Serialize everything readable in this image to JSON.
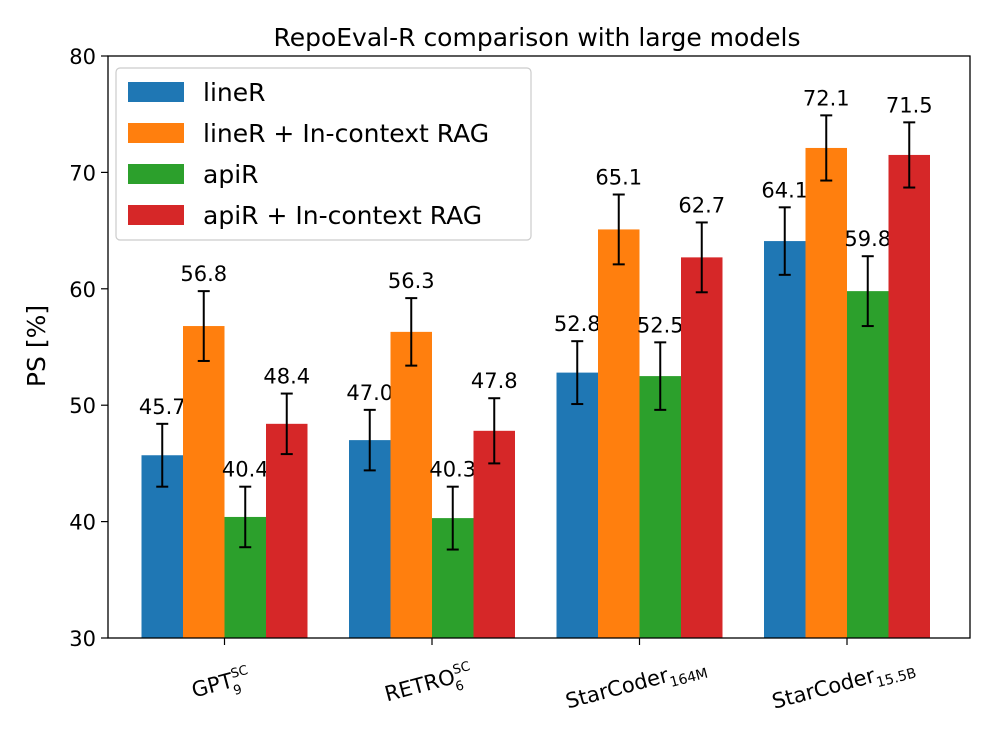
{
  "chart_data": {
    "type": "bar",
    "title": "RepoEval-R comparison with large models",
    "xlabel": "",
    "ylabel": "PS [%]",
    "ylim": [
      30,
      80
    ],
    "yticks": [
      30,
      40,
      50,
      60,
      70,
      80
    ],
    "grid": false,
    "legend_position": "top-left",
    "categories": [
      {
        "base": "GPT",
        "sup": "SC",
        "sub": "9"
      },
      {
        "base": "RETRO",
        "sup": "SC",
        "sub": "6"
      },
      {
        "base": "StarCoder",
        "sup": "",
        "sub": "164M"
      },
      {
        "base": "StarCoder",
        "sup": "",
        "sub": "15.5B"
      }
    ],
    "series": [
      {
        "name": "lineR",
        "color": "#1f77b4",
        "values": [
          45.7,
          47.0,
          52.8,
          64.1
        ],
        "errors": [
          2.7,
          2.6,
          2.7,
          2.9
        ],
        "labels": [
          "45.7",
          "47.0",
          "52.8",
          "64.1"
        ]
      },
      {
        "name": "lineR + In-context RAG",
        "color": "#ff7f0e",
        "values": [
          56.8,
          56.3,
          65.1,
          72.1
        ],
        "errors": [
          3.0,
          2.9,
          3.0,
          2.8
        ],
        "labels": [
          "56.8",
          "56.3",
          "65.1",
          "72.1"
        ]
      },
      {
        "name": "apiR",
        "color": "#2ca02c",
        "values": [
          40.4,
          40.3,
          52.5,
          59.8
        ],
        "errors": [
          2.6,
          2.7,
          2.9,
          3.0
        ],
        "labels": [
          "40.4",
          "40.3",
          "52.5",
          "59.8"
        ]
      },
      {
        "name": "apiR + In-context RAG",
        "color": "#d62728",
        "values": [
          48.4,
          47.8,
          62.7,
          71.5
        ],
        "errors": [
          2.6,
          2.8,
          3.0,
          2.8
        ],
        "labels": [
          "48.4",
          "47.8",
          "62.7",
          "71.5"
        ]
      }
    ]
  }
}
